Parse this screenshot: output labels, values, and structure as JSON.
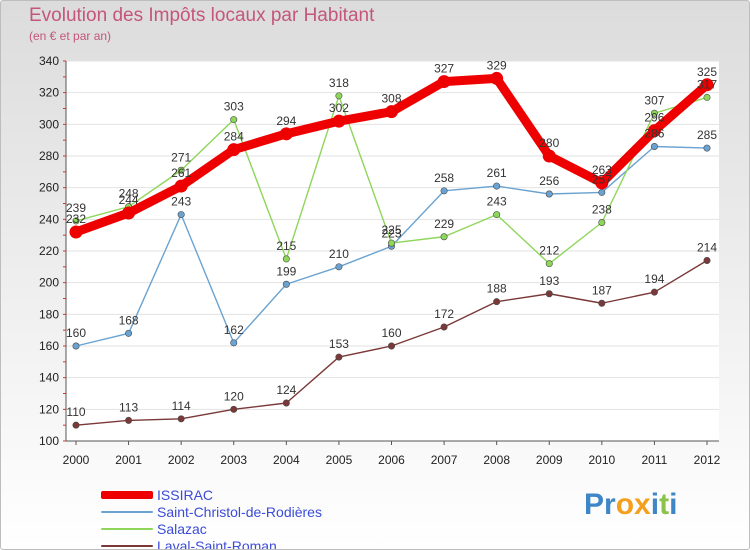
{
  "header": {
    "title": "Evolution des Impôts locaux par Habitant",
    "subtitle": "(en € et par an)"
  },
  "colors": {
    "title": "#c4567a",
    "legend_text": "#3b4bd8",
    "ISSIRAC": "#ee0000",
    "Saint-Christol-de-Rodières": "#6aa3d1",
    "Salazac": "#8ed65a",
    "Laval-Saint-Roman": "#7a3838"
  },
  "logo": {
    "text": "Proxiti",
    "letter_colors": [
      "#3e86c6",
      "#3e86c6",
      "#f2a01d",
      "#f2a01d",
      "#3e86c6",
      "#8bc34a",
      "#3e86c6"
    ]
  },
  "chart_data": {
    "type": "line",
    "x": [
      2000,
      2001,
      2002,
      2003,
      2004,
      2005,
      2006,
      2007,
      2008,
      2009,
      2010,
      2011,
      2012
    ],
    "ylim": [
      100,
      340
    ],
    "y_ticks": [
      100,
      120,
      140,
      160,
      180,
      200,
      220,
      240,
      260,
      280,
      300,
      320,
      340
    ],
    "grid": "horizontal",
    "legend_position": "bottom-left",
    "series": [
      {
        "name": "ISSIRAC",
        "values": [
          232,
          244,
          261,
          284,
          294,
          302,
          308,
          327,
          329,
          280,
          263,
          296,
          325
        ],
        "labels": [
          "232",
          "244",
          "261",
          "284",
          "294",
          "302",
          "308",
          "327",
          "329",
          "280",
          "263",
          "296",
          "325"
        ]
      },
      {
        "name": "Saint-Christol-de-Rodières",
        "values": [
          160,
          168,
          243,
          162,
          199,
          210,
          223,
          258,
          261,
          256,
          257,
          286,
          285
        ],
        "labels": [
          "160",
          "168",
          "243",
          "162",
          "199",
          "210",
          "223",
          "258",
          "261",
          "256",
          "257",
          "286",
          "285"
        ]
      },
      {
        "name": "Salazac",
        "values": [
          239,
          248,
          271,
          303,
          215,
          318,
          225,
          229,
          243,
          212,
          238,
          307,
          317
        ],
        "labels": [
          "239",
          "248",
          "271",
          "303",
          "215",
          "318",
          "225",
          "229",
          "243",
          "212",
          "238",
          "307",
          "317"
        ]
      },
      {
        "name": "Laval-Saint-Roman",
        "values": [
          110,
          113,
          114,
          120,
          124,
          153,
          160,
          172,
          188,
          193,
          187,
          194,
          214
        ],
        "labels": [
          "110",
          "113",
          "114",
          "120",
          "124",
          "153",
          "160",
          "172",
          "188",
          "193",
          "187",
          "194",
          "214"
        ]
      }
    ]
  }
}
